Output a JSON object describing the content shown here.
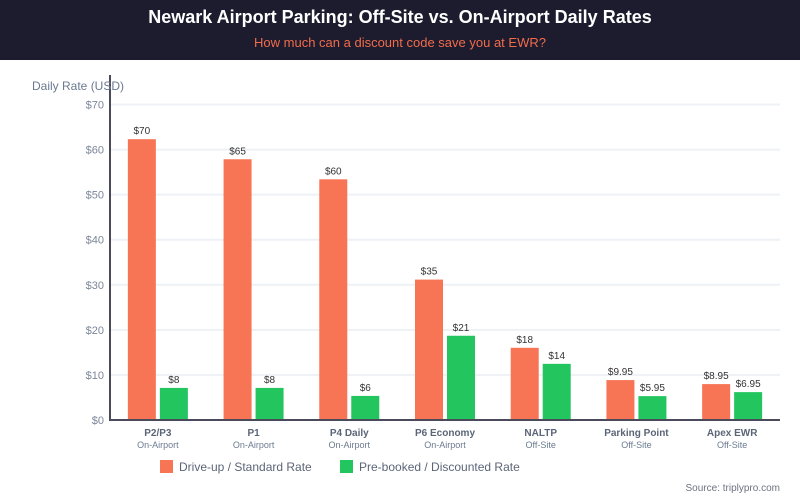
{
  "header": {
    "title": "Newark Airport Parking: Off-Site vs. On-Airport Daily Rates",
    "subtitle": "How much can a discount code save you at EWR?"
  },
  "source": "Source: triplypro.com",
  "colors": {
    "header_bg": "#1c1c2e",
    "subtitle": "#f26b4b",
    "standard": "#f77455",
    "discounted": "#22c55e"
  },
  "chart_data": {
    "type": "bar",
    "title": "Newark Airport Parking: Off-Site vs. On-Airport Daily Rates",
    "subtitle": "How much can a discount code save you at EWR?",
    "xlabel": "",
    "ylabel": "Daily Rate (USD)",
    "ylim": [
      0,
      70
    ],
    "yticks": [
      "$0",
      "$10",
      "$20",
      "$30",
      "$40",
      "$50",
      "$60",
      "$70"
    ],
    "grid": true,
    "legend_position": "bottom-center",
    "categories": [
      "P2/P3",
      "P1",
      "P4 Daily",
      "P6 Economy",
      "NALTP",
      "Parking Point",
      "Apex EWR"
    ],
    "category_types": [
      "On-Airport",
      "On-Airport",
      "On-Airport",
      "On-Airport",
      "Off-Site",
      "Off-Site",
      "Off-Site"
    ],
    "series": [
      {
        "name": "Drive-up / Standard Rate",
        "values": [
          70,
          65,
          60,
          35,
          18,
          9.95,
          8.95
        ],
        "labels": [
          "$70",
          "$65",
          "$60",
          "$35",
          "$18",
          "$9.95",
          "$8.95"
        ]
      },
      {
        "name": "Pre-booked / Discounted Rate",
        "values": [
          8,
          8,
          6,
          21,
          14,
          5.95,
          6.95
        ],
        "labels": [
          "$8",
          "$8",
          "$6",
          "$21",
          "$14",
          "$5.95",
          "$6.95"
        ]
      }
    ]
  }
}
